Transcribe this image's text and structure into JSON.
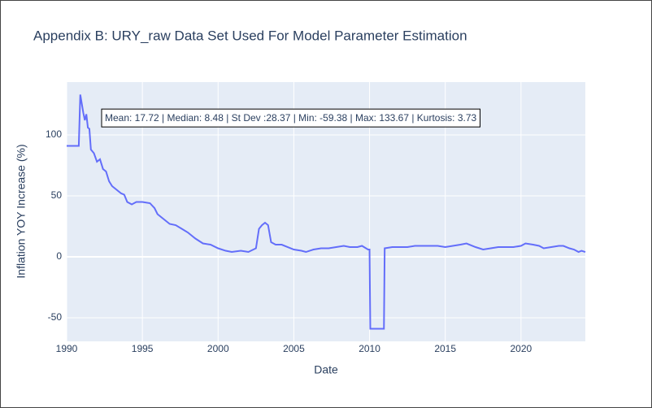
{
  "chart_data": {
    "type": "line",
    "title": "Appendix B: URY_raw Data Set Used For Model Parameter Estimation",
    "xlabel": "Date",
    "ylabel": "Inflation YOY Increase (%)",
    "annotation": "Mean: 17.72 | Median: 8.48 | St Dev :28.37 | Min: -59.38 | Max: 133.67 | Kurtosis: 3.73",
    "x": [
      1990.0,
      1990.8,
      1990.9,
      1991.1,
      1991.2,
      1991.3,
      1991.4,
      1991.5,
      1991.6,
      1991.8,
      1992.0,
      1992.2,
      1992.4,
      1992.6,
      1992.8,
      1993.0,
      1993.3,
      1993.6,
      1993.8,
      1994.0,
      1994.3,
      1994.6,
      1995.0,
      1995.5,
      1995.8,
      1996.0,
      1996.4,
      1996.8,
      1997.2,
      1997.6,
      1998.0,
      1998.5,
      1999.0,
      1999.5,
      2000.0,
      2000.5,
      2000.9,
      2001.5,
      2002.0,
      2002.5,
      2002.7,
      2002.9,
      2003.1,
      2003.3,
      2003.5,
      2003.8,
      2004.2,
      2004.6,
      2005.0,
      2005.5,
      2005.8,
      2006.3,
      2006.8,
      2007.3,
      2007.8,
      2008.3,
      2008.7,
      2009.2,
      2009.5,
      2009.9,
      2010.0,
      2010.05,
      2010.95,
      2011.0,
      2011.5,
      2012.0,
      2012.5,
      2013.0,
      2013.5,
      2014.0,
      2014.5,
      2015.0,
      2015.5,
      2016.0,
      2016.4,
      2017.0,
      2017.5,
      2018.0,
      2018.5,
      2019.0,
      2019.5,
      2020.0,
      2020.3,
      2020.8,
      2021.2,
      2021.5,
      2022.0,
      2022.5,
      2022.8,
      2023.2,
      2023.5,
      2023.8,
      2024.0,
      2024.25
    ],
    "values": [
      91,
      91,
      133,
      118,
      112,
      117,
      106,
      105,
      88,
      85,
      78,
      80,
      72,
      70,
      62,
      58,
      55,
      52,
      51,
      45,
      43,
      45,
      45,
      44,
      40,
      35,
      31,
      27,
      26,
      23,
      20,
      15,
      11,
      10,
      7,
      5,
      4,
      5,
      4,
      7,
      23,
      26,
      28,
      26,
      12,
      10,
      10,
      8,
      6,
      5,
      4,
      6,
      7,
      7,
      8,
      9,
      8,
      8,
      9,
      6,
      6,
      -59,
      -59,
      7,
      8,
      8,
      8,
      9,
      9,
      9,
      9,
      8,
      9,
      10,
      11,
      8,
      6,
      7,
      8,
      8,
      8,
      9,
      11,
      10,
      9,
      7,
      8,
      9,
      9,
      7,
      6,
      4,
      5,
      4
    ],
    "color": "#636efa",
    "xlim": [
      1990,
      2024.25
    ],
    "xticks": [
      1990,
      1995,
      2000,
      2005,
      2010,
      2015,
      2020
    ],
    "ylim": [
      -69.3,
      143.3
    ],
    "yticks": [
      -50,
      0,
      50,
      100
    ],
    "grid": true
  }
}
